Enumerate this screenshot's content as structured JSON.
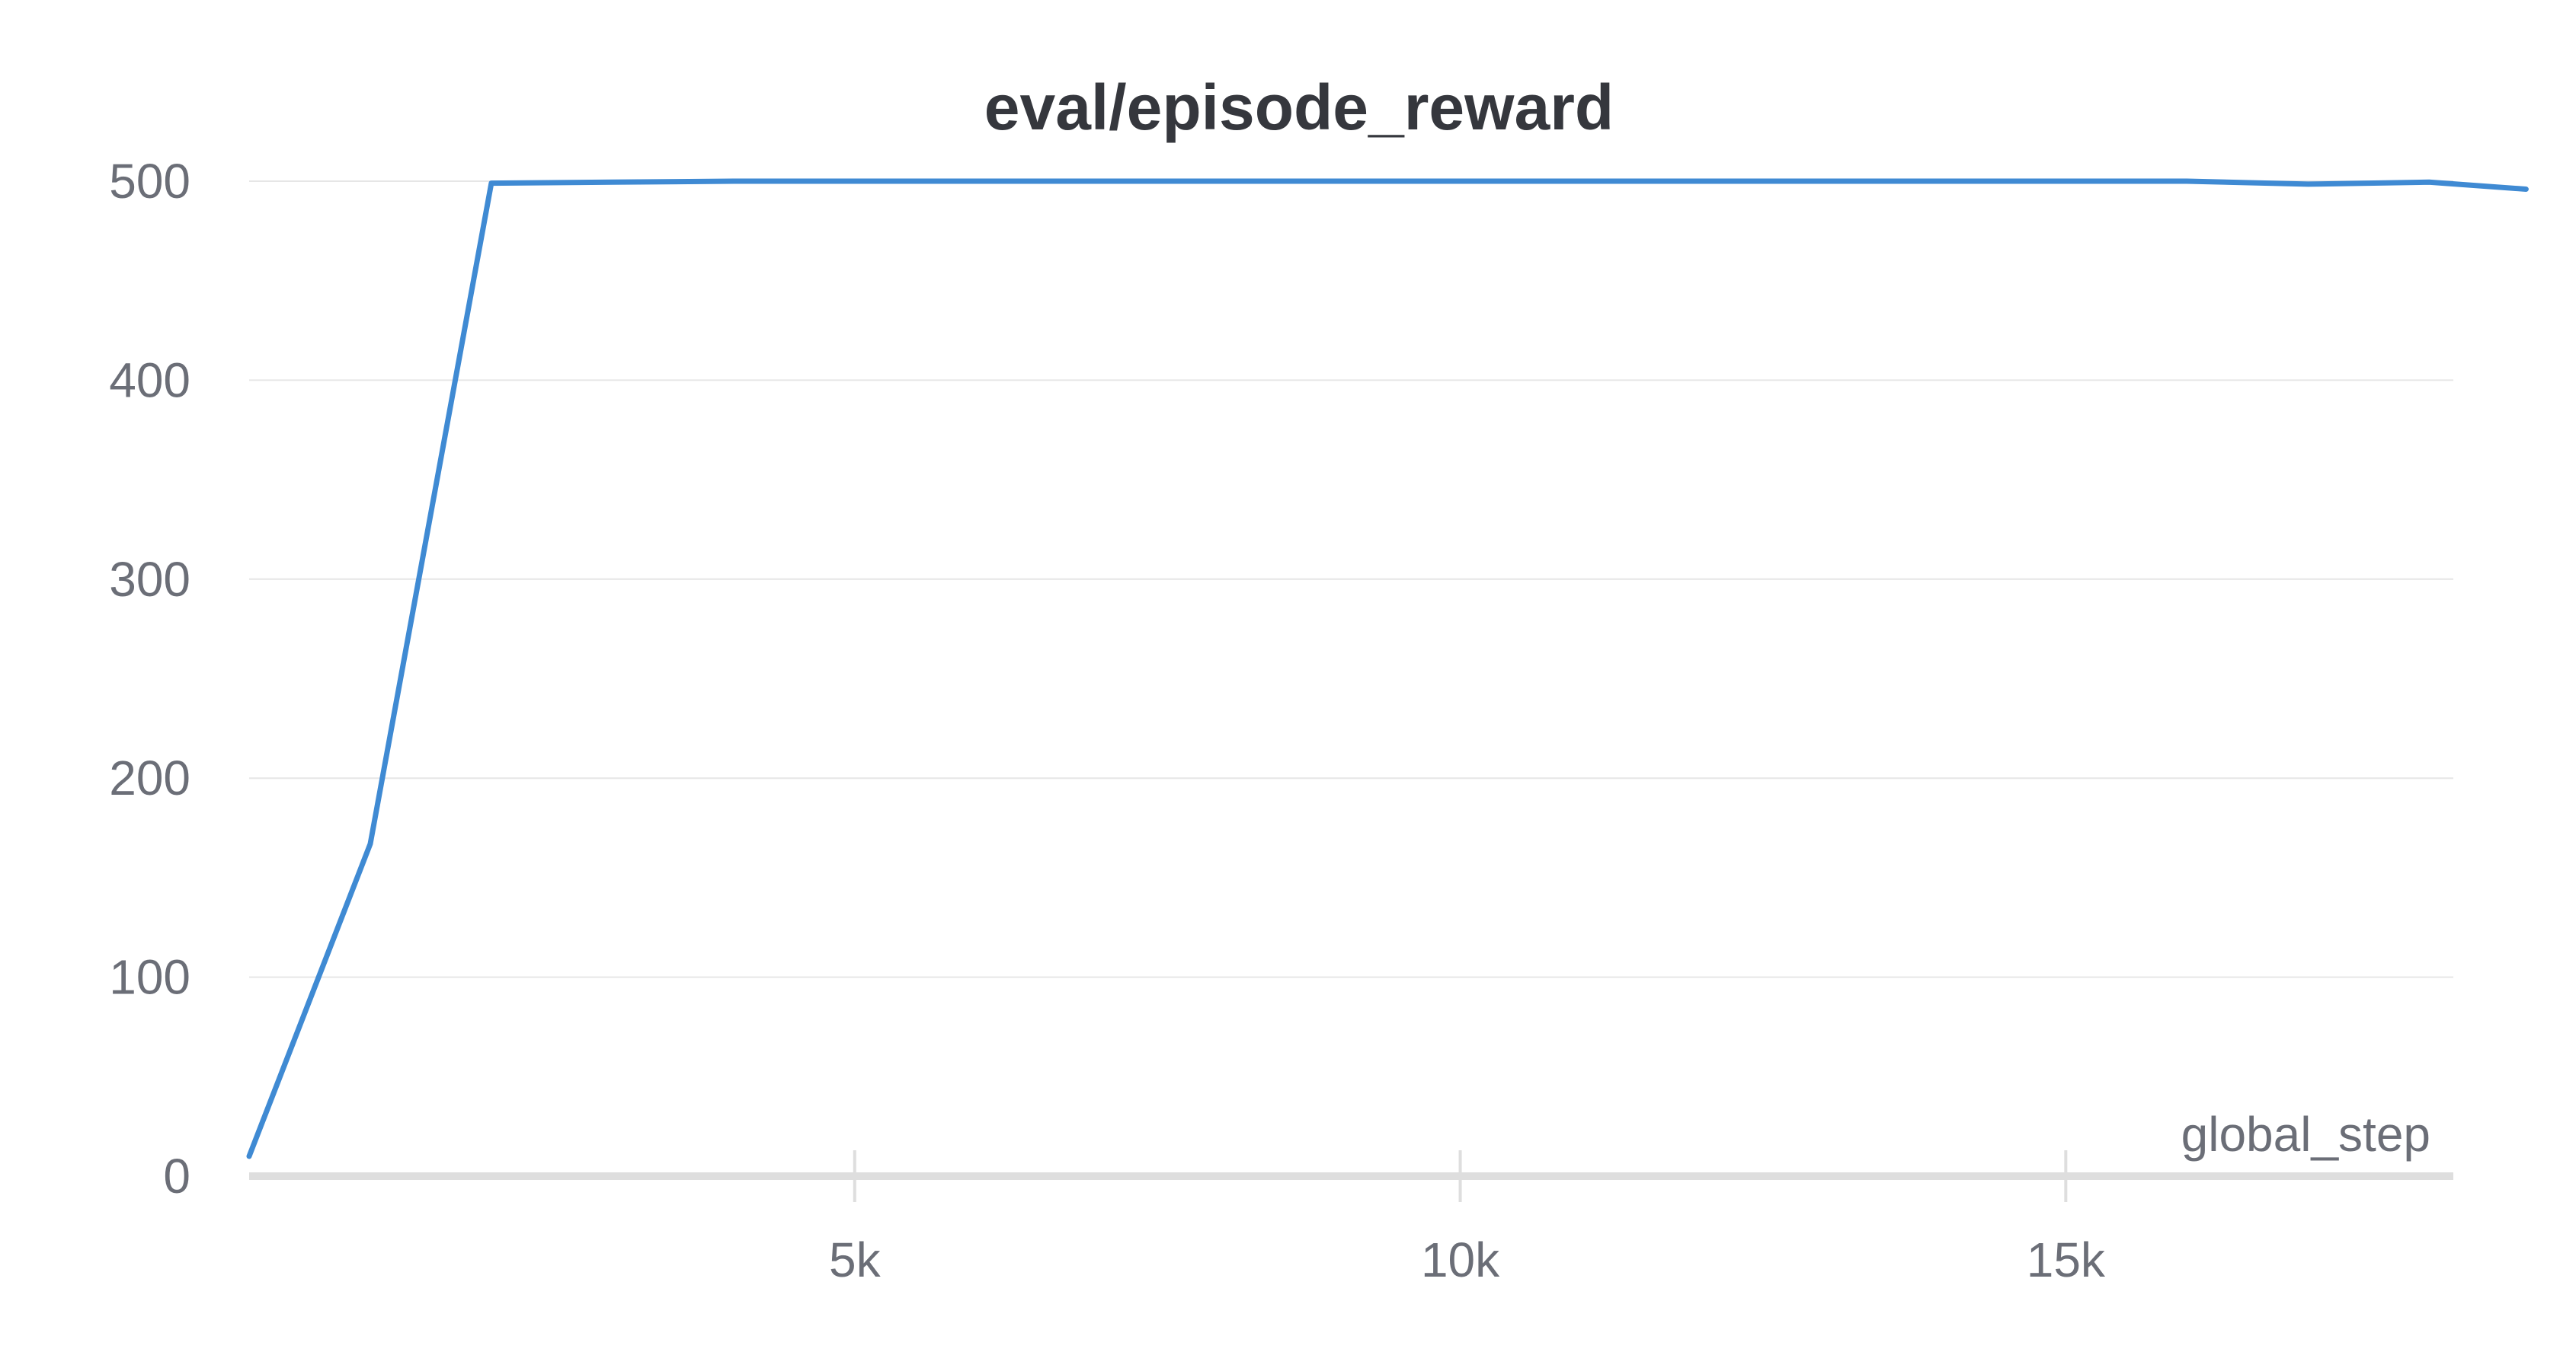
{
  "chart_data": {
    "type": "line",
    "title": "eval/episode_reward",
    "xlabel": "global_step",
    "ylabel": "",
    "xlim": [
      0,
      18200
    ],
    "ylim": [
      0,
      500
    ],
    "x_ticks": [
      {
        "value": 5000,
        "label": "5k"
      },
      {
        "value": 10000,
        "label": "10k"
      },
      {
        "value": 15000,
        "label": "15k"
      }
    ],
    "y_ticks": [
      {
        "value": 0,
        "label": "0"
      },
      {
        "value": 100,
        "label": "100"
      },
      {
        "value": 200,
        "label": "200"
      },
      {
        "value": 300,
        "label": "300"
      },
      {
        "value": 400,
        "label": "400"
      },
      {
        "value": 500,
        "label": "500"
      }
    ],
    "grid": true,
    "legend": "none",
    "series": [
      {
        "color": "#3f8ad3",
        "x": [
          0,
          1000,
          2000,
          3000,
          4000,
          5000,
          6000,
          7000,
          8000,
          9000,
          10000,
          11000,
          12000,
          13000,
          14000,
          15000,
          16000,
          17000,
          18000,
          18800
        ],
        "y": [
          10,
          167,
          499,
          499.5,
          500,
          500,
          500,
          500,
          500,
          500,
          500,
          500,
          500,
          500,
          500,
          500,
          500,
          498.5,
          499.5,
          496
        ]
      }
    ]
  }
}
